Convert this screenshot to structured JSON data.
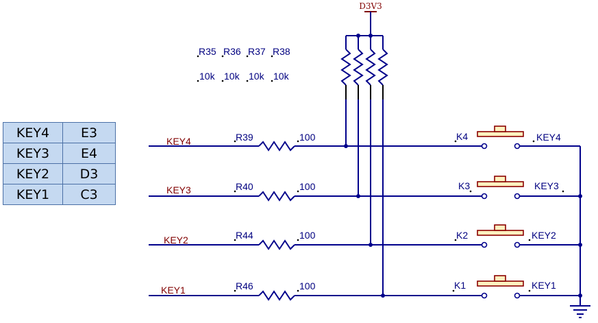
{
  "pin_table": {
    "rows": [
      {
        "key": "KEY4",
        "pin": "E3"
      },
      {
        "key": "KEY3",
        "pin": "E4"
      },
      {
        "key": "KEY2",
        "pin": "D3"
      },
      {
        "key": "KEY1",
        "pin": "C3"
      }
    ]
  },
  "schematic": {
    "power_label": "D3V3",
    "pullups": {
      "designators": [
        "R35",
        "R36",
        "R37",
        "R38"
      ],
      "values": [
        "10k",
        "10k",
        "10k",
        "10k"
      ]
    },
    "lines": [
      {
        "net_left": "KEY4",
        "resistor": "R39",
        "value": "100",
        "switch": "K4",
        "net_right": "KEY4"
      },
      {
        "net_left": "KEY3",
        "resistor": "R40",
        "value": "100",
        "switch": "K3",
        "net_right": "KEY3"
      },
      {
        "net_left": "KEY2",
        "resistor": "R44",
        "value": "100",
        "switch": "K2",
        "net_right": "KEY2"
      },
      {
        "net_left": "KEY1",
        "resistor": "R46",
        "value": "100",
        "switch": "K1",
        "net_right": "KEY1"
      }
    ]
  },
  "colors": {
    "wire": "#00008b",
    "net_label": "#800000",
    "designator": "#000080",
    "button_fill": "#fff3c0",
    "button_stroke": "#8b0000",
    "table_fill": "#c5d9f1"
  }
}
